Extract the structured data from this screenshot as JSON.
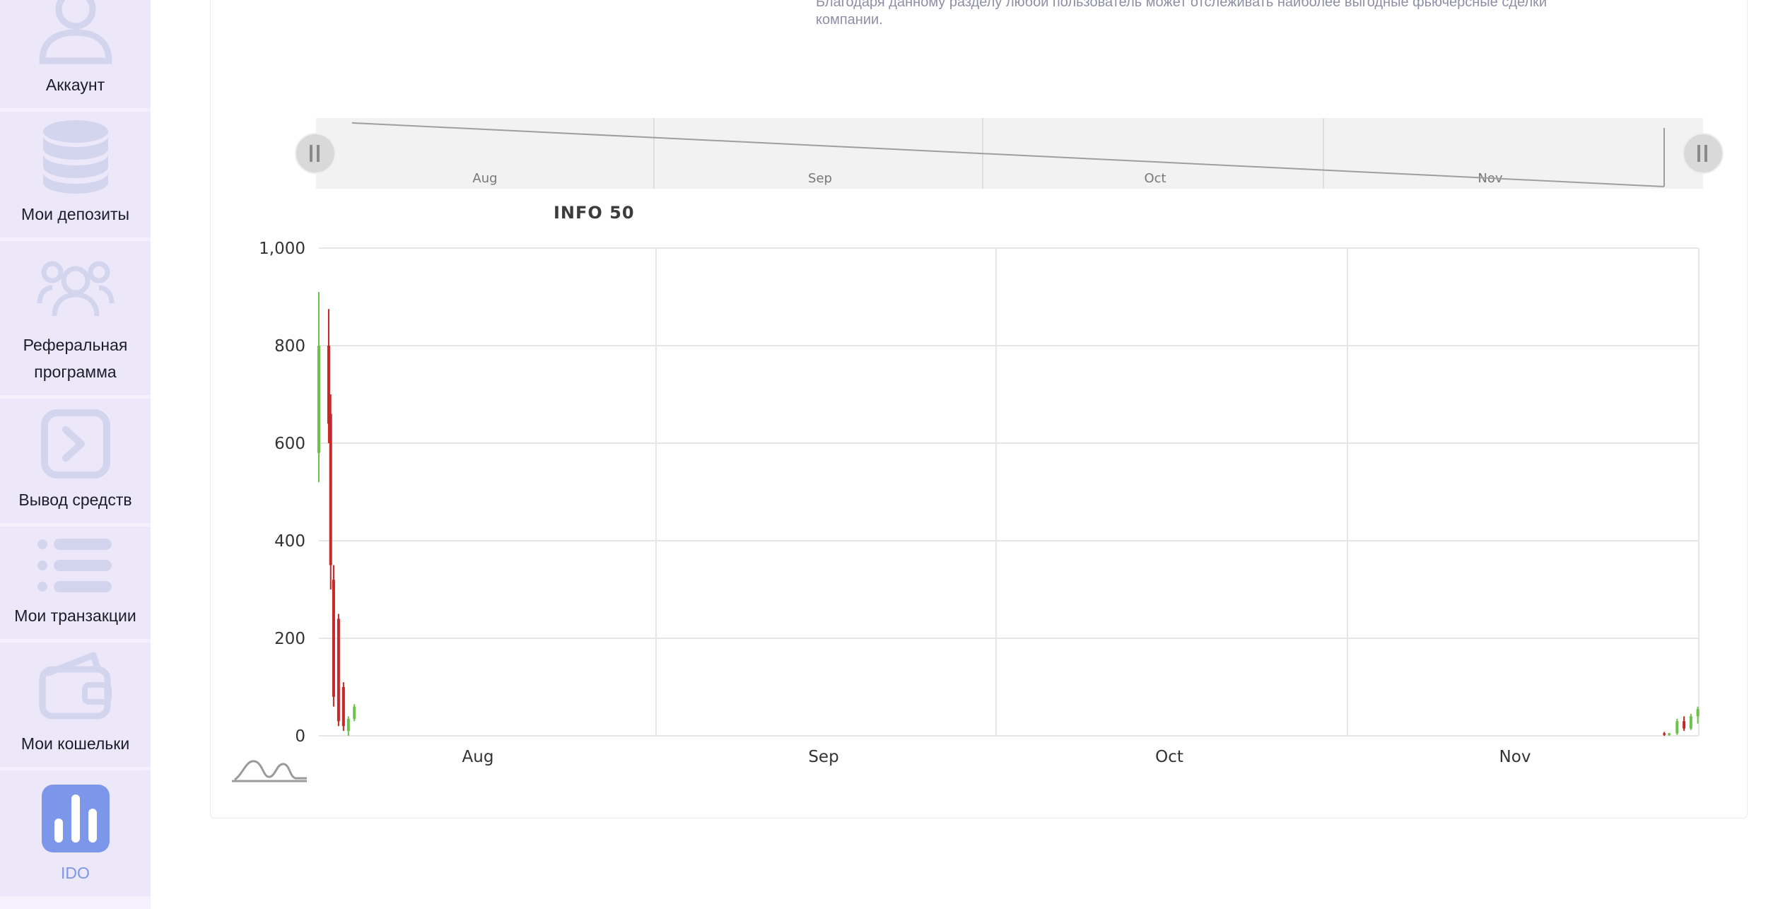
{
  "sidebar": {
    "items": [
      {
        "label": "Аккаунт",
        "icon": "user-icon",
        "active": false
      },
      {
        "label": "Мои депозиты",
        "icon": "coins-stack-icon",
        "active": false
      },
      {
        "label": "Реферальная программа",
        "icon": "users-group-icon",
        "active": false
      },
      {
        "label": "Вывод средств",
        "icon": "terminal-arrow-icon",
        "active": false
      },
      {
        "label": "Мои транзакции",
        "icon": "list-icon",
        "active": false
      },
      {
        "label": "Мои кошельки",
        "icon": "wallet-icon",
        "active": false
      },
      {
        "label": "IDO",
        "icon": "bar-chart-icon",
        "active": true
      }
    ]
  },
  "section": {
    "description": "Благодаря данному разделу любой пользователь может отслеживать наиболее выгодные фьючерсные сделки компании."
  },
  "colors": {
    "up": "#6cc24a",
    "down": "#c62828",
    "accent": "#7c96ea",
    "sidebar_icon": "#d3d4ee"
  },
  "chart_data": {
    "type": "candlestick",
    "title": "INFO 50",
    "x_ticks": [
      "Aug",
      "Sep",
      "Oct",
      "Nov"
    ],
    "y_ticks": [
      "0",
      "200",
      "400",
      "600",
      "800",
      "1,000"
    ],
    "ylim": [
      0,
      1000
    ],
    "xlim_days": [
      0,
      140
    ],
    "grid": true,
    "navigator": {
      "x_ticks": [
        "Aug",
        "Sep",
        "Oct",
        "Nov"
      ],
      "line": [
        [
          0,
          990
        ],
        [
          120,
          0
        ]
      ]
    },
    "candles": [
      {
        "day": 0.0,
        "open": 580,
        "high": 910,
        "low": 520,
        "close": 800
      },
      {
        "day": 1.0,
        "open": 800,
        "high": 875,
        "low": 600,
        "close": 640
      },
      {
        "day": 1.2,
        "open": 660,
        "high": 700,
        "low": 300,
        "close": 350
      },
      {
        "day": 1.5,
        "open": 320,
        "high": 350,
        "low": 60,
        "close": 80
      },
      {
        "day": 2.0,
        "open": 240,
        "high": 250,
        "low": 20,
        "close": 30
      },
      {
        "day": 2.5,
        "open": 100,
        "high": 110,
        "low": 10,
        "close": 20
      },
      {
        "day": 3.0,
        "open": 10,
        "high": 40,
        "low": 0,
        "close": 35
      },
      {
        "day": 3.6,
        "open": 35,
        "high": 65,
        "low": 30,
        "close": 60
      },
      {
        "day": 136.5,
        "open": 5,
        "high": 8,
        "low": 0,
        "close": 3
      },
      {
        "day": 137.0,
        "open": 3,
        "high": 6,
        "low": 0,
        "close": 5
      },
      {
        "day": 137.8,
        "open": 5,
        "high": 35,
        "low": 2,
        "close": 30
      },
      {
        "day": 138.5,
        "open": 30,
        "high": 40,
        "low": 10,
        "close": 15
      },
      {
        "day": 139.2,
        "open": 15,
        "high": 45,
        "low": 12,
        "close": 40
      },
      {
        "day": 139.9,
        "open": 40,
        "high": 60,
        "low": 25,
        "close": 55
      }
    ]
  }
}
